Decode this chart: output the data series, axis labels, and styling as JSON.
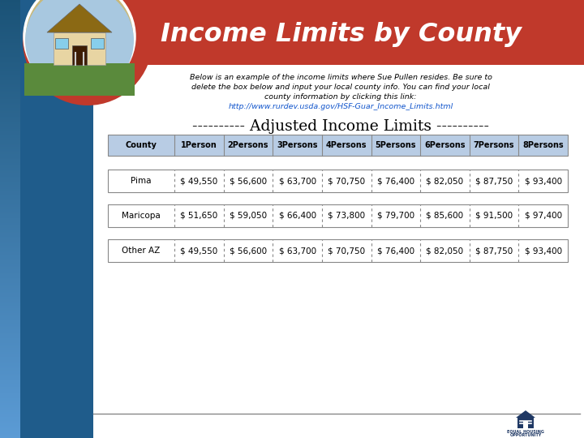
{
  "title": "Income Limits by County",
  "subtitle_line1": "Below is an example of the income limits where Sue Pullen resides. Be sure to",
  "subtitle_line2": "delete the box below and input your local county info. You can find your local",
  "subtitle_line3": "county information by clicking this link:",
  "subtitle_link": "http://www.rurdev.usda.gov/HSF-Guar_Income_Limits.html",
  "adjusted_label": "---------- Adjusted Income Limits ----------",
  "header_row": [
    "County",
    "1Person",
    "2Persons",
    "3Persons",
    "4Persons",
    "5Persons",
    "6Persons",
    "7Persons",
    "8Persons"
  ],
  "data_rows": [
    [
      "Pima",
      "$ 49,550",
      "$ 56,600",
      "$ 63,700",
      "$ 70,750",
      "$ 76,400",
      "$ 82,050",
      "$ 87,750",
      "$ 93,400"
    ],
    [
      "Maricopa",
      "$ 51,650",
      "$ 59,050",
      "$ 66,400",
      "$ 73,800",
      "$ 79,700",
      "$ 85,600",
      "$ 91,500",
      "$ 97,400"
    ],
    [
      "Other AZ",
      "$ 49,550",
      "$ 56,600",
      "$ 63,700",
      "$ 70,750",
      "$ 76,400",
      "$ 82,050",
      "$ 87,750",
      "$ 93,400"
    ]
  ],
  "title_bg_color": "#c0392b",
  "title_text_color": "#ffffff",
  "header_bg_color": "#b8cce4",
  "row_bg_color": "#ffffff",
  "slide_bg_color": "#dce6f1",
  "equal_housing_color": "#1f3864",
  "link_color": "#1155cc"
}
